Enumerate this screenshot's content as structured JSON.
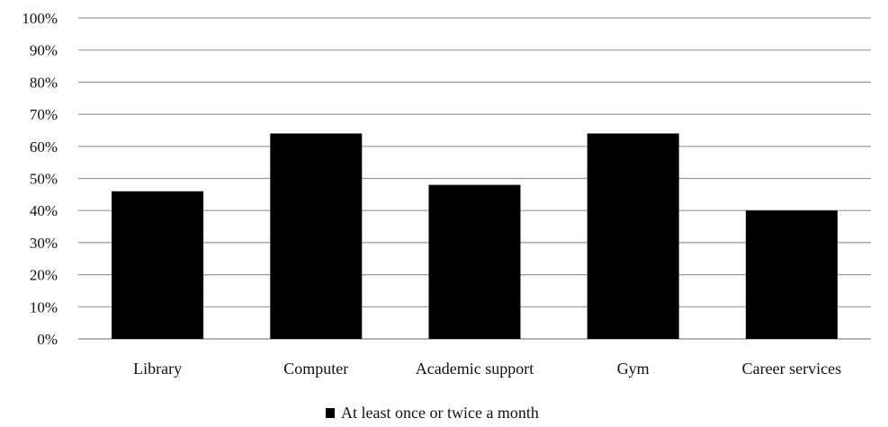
{
  "chart_data": {
    "type": "bar",
    "categories": [
      "Library",
      "Computer",
      "Academic support",
      "Gym",
      "Career services"
    ],
    "series": [
      {
        "name": "At least once or twice a month",
        "values": [
          46,
          64,
          48,
          64,
          40
        ],
        "color": "#000000"
      }
    ],
    "y_ticks": [
      "0%",
      "10%",
      "20%",
      "30%",
      "40%",
      "50%",
      "60%",
      "70%",
      "80%",
      "90%",
      "100%"
    ],
    "ylim": [
      0,
      100
    ],
    "grid": true,
    "gridline_color": "#999999",
    "legend_position": "bottom"
  }
}
